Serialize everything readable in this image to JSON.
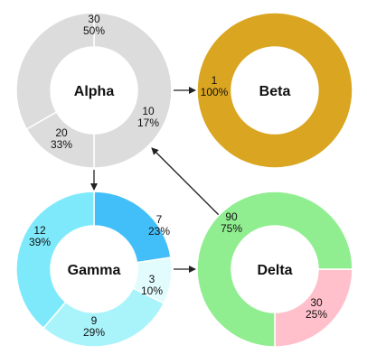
{
  "chart_data": {
    "type": "donut-network",
    "charts": [
      {
        "name": "Alpha",
        "segments": [
          {
            "value": 30,
            "percent": "50%",
            "color": "#dcdcdc"
          },
          {
            "value": 10,
            "percent": "17%",
            "color": "#dcdcdc"
          },
          {
            "value": 20,
            "percent": "33%",
            "color": "#dcdcdc"
          }
        ]
      },
      {
        "name": "Beta",
        "segments": [
          {
            "value": 1,
            "percent": "100%",
            "color": "#daa520"
          }
        ]
      },
      {
        "name": "Gamma",
        "segments": [
          {
            "value": 7,
            "percent": "23%",
            "color": "#42bff8"
          },
          {
            "value": 3,
            "percent": "10%",
            "color": "#e2fbfd"
          },
          {
            "value": 9,
            "percent": "29%",
            "color": "#a9f4fb"
          },
          {
            "value": 12,
            "percent": "39%",
            "color": "#7ee9fb"
          }
        ]
      },
      {
        "name": "Delta",
        "segments": [
          {
            "value": 30,
            "percent": "25%",
            "color": "#ffc0cb"
          },
          {
            "value": 90,
            "percent": "75%",
            "color": "#90ee90"
          }
        ]
      }
    ],
    "edges": [
      {
        "from": "Alpha",
        "to": "Beta"
      },
      {
        "from": "Alpha",
        "to": "Gamma"
      },
      {
        "from": "Gamma",
        "to": "Delta"
      },
      {
        "from": "Delta",
        "to": "Alpha"
      }
    ]
  }
}
